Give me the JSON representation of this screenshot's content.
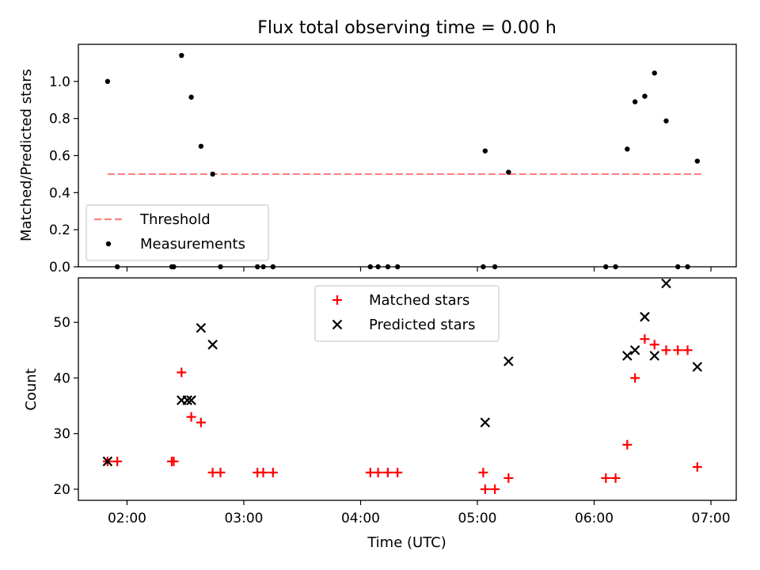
{
  "chart_data": [
    {
      "type": "scatter",
      "title": "Flux total observing time = 0.00 h",
      "xlabel": "",
      "ylabel": "Matched/Predicted stars",
      "ylim": [
        0,
        1.2
      ],
      "yticks": [
        "0.0",
        "0.2",
        "0.4",
        "0.6",
        "0.8",
        "1.0"
      ],
      "xlim": [
        "01:35",
        "07:13"
      ],
      "legend_position": "lower-left",
      "series": [
        {
          "name": "Threshold",
          "style": "dashed-line",
          "color": "#ff7f7f",
          "x": [
            "01:50",
            "06:55"
          ],
          "y": [
            0.5,
            0.5
          ]
        },
        {
          "name": "Measurements",
          "style": "dot",
          "color": "#000000",
          "x": [
            "01:50",
            "01:55",
            "02:23",
            "02:24",
            "02:28",
            "02:33",
            "02:38",
            "02:44",
            "02:48",
            "03:07",
            "03:10",
            "03:15",
            "04:05",
            "04:09",
            "04:14",
            "04:19",
            "05:03",
            "05:04",
            "05:09",
            "05:16",
            "06:06",
            "06:11",
            "06:17",
            "06:21",
            "06:26",
            "06:31",
            "06:37",
            "06:43",
            "06:48",
            "06:53"
          ],
          "y": [
            1.0,
            0.0,
            0.0,
            0.0,
            1.14,
            0.915,
            0.65,
            0.5,
            0.0,
            0.0,
            0.0,
            0.0,
            0.0,
            0.0,
            0.0,
            0.0,
            0.0,
            0.625,
            0.0,
            0.51,
            0.0,
            0.0,
            0.635,
            0.89,
            0.92,
            1.045,
            0.787,
            0.0,
            0.0,
            0.57
          ]
        }
      ]
    },
    {
      "type": "scatter",
      "title": "",
      "xlabel": "Time (UTC)",
      "ylabel": "Count",
      "ylim": [
        18,
        58
      ],
      "yticks": [
        "20",
        "30",
        "40",
        "50"
      ],
      "xlim": [
        "01:35",
        "07:13"
      ],
      "xticks": [
        "02:00",
        "03:00",
        "04:00",
        "05:00",
        "06:00",
        "07:00"
      ],
      "legend_position": "upper-center",
      "series": [
        {
          "name": "Matched stars",
          "style": "plus",
          "color": "#ff0000",
          "x": [
            "01:50",
            "01:55",
            "02:23",
            "02:24",
            "02:28",
            "02:33",
            "02:38",
            "02:44",
            "02:48",
            "03:07",
            "03:10",
            "03:15",
            "04:05",
            "04:09",
            "04:14",
            "04:19",
            "05:03",
            "05:04",
            "05:09",
            "05:16",
            "06:06",
            "06:11",
            "06:17",
            "06:21",
            "06:26",
            "06:31",
            "06:37",
            "06:43",
            "06:48",
            "06:53"
          ],
          "y": [
            25,
            25,
            25,
            25,
            41,
            33,
            32,
            23,
            23,
            23,
            23,
            23,
            23,
            23,
            23,
            23,
            23,
            20,
            20,
            22,
            22,
            22,
            28,
            40,
            47,
            46,
            45,
            45,
            45,
            24
          ]
        },
        {
          "name": "Predicted stars",
          "style": "x",
          "color": "#000000",
          "x": [
            "01:50",
            "02:28",
            "02:31",
            "02:33",
            "02:38",
            "02:44",
            "05:04",
            "05:16",
            "06:17",
            "06:21",
            "06:26",
            "06:31",
            "06:37",
            "06:53"
          ],
          "y": [
            25,
            36,
            36,
            36,
            49,
            46,
            32,
            43,
            44,
            45,
            51,
            44,
            57,
            42
          ]
        }
      ]
    }
  ]
}
